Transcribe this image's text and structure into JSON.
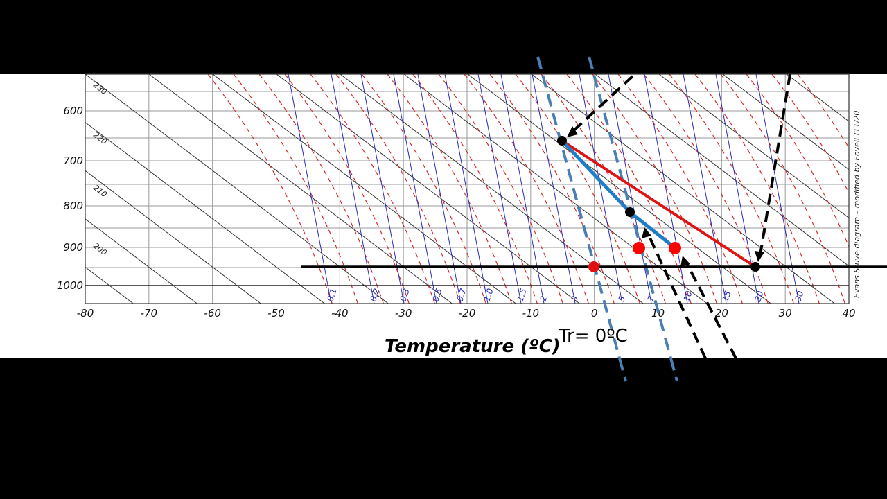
{
  "diagram": {
    "xlabel": "Temperature (ºC)",
    "credit": "Evans Stuve diagram – modified by Fovell (11/20",
    "annotation": "Tr= 0ºC",
    "x_ticks": [
      "-80",
      "-70",
      "-60",
      "-50",
      "-40",
      "-30",
      "-20",
      "-10",
      "0",
      "10",
      "20",
      "30",
      "40"
    ],
    "y_ticks": [
      "600",
      "700",
      "800",
      "900",
      "1000"
    ],
    "theta_labels": [
      "230",
      "220",
      "210",
      "200"
    ],
    "mixing_ratio_labels": [
      "0.1",
      "0.2",
      "0.3",
      "0.5",
      "0.7",
      "1.0",
      "1.5",
      "2",
      "3",
      "5",
      "7",
      "10",
      "15",
      "20",
      "30"
    ],
    "colors": {
      "dry_adiabat": "#333333",
      "moist_adiabat": "#d42a2a",
      "mixing_ratio": "#2a2ab8",
      "red_path": "#e11414",
      "blue_path": "#1e7fc8",
      "dashed_blue": "#4a7fb5",
      "point_black": "#000000",
      "point_red": "#ff0000"
    },
    "icon_arrows": "arrow-icon"
  }
}
